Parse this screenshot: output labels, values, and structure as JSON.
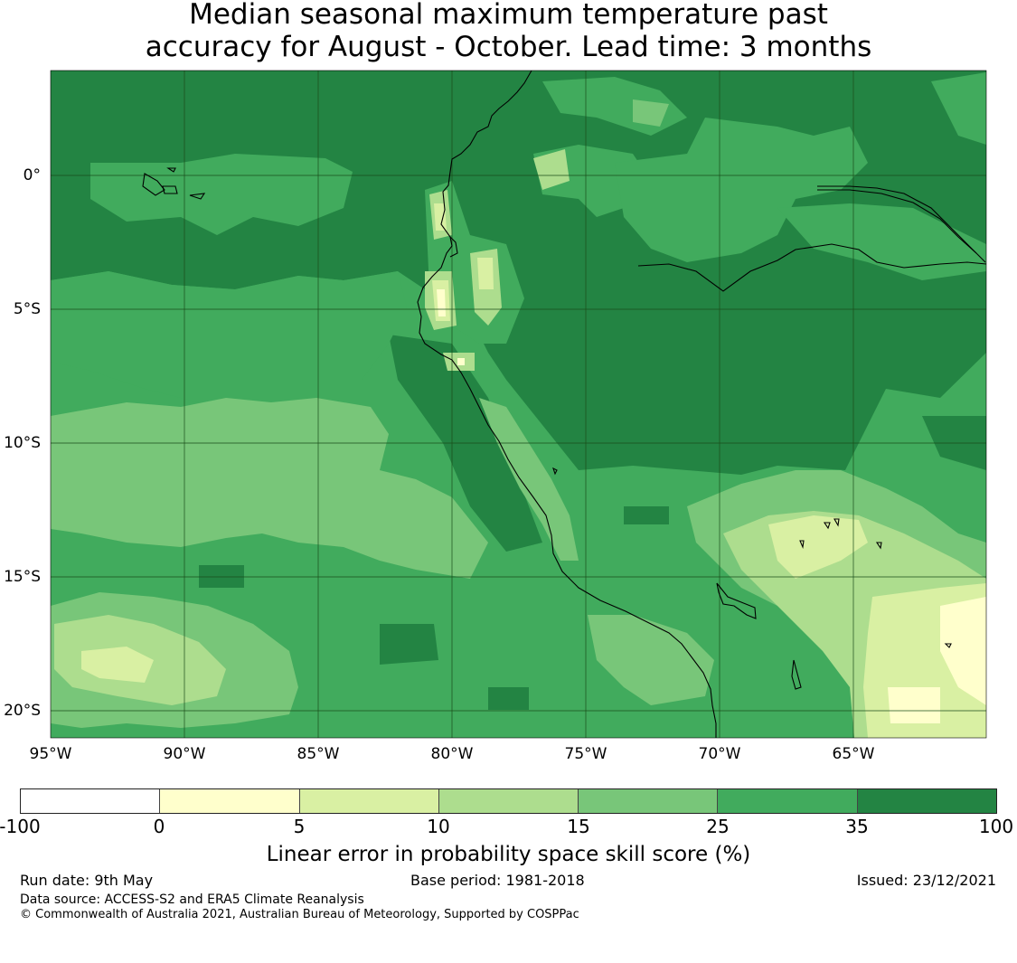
{
  "title": {
    "line1": "Median seasonal maximum temperature past",
    "line2": "accuracy for August - October. Lead time: 3 months"
  },
  "map": {
    "region": "Eastern Pacific / Peru and Ecuador",
    "colors": {
      "c_neg": "#ffffff",
      "c0": "#ffffcc",
      "c5": "#d9f0a3",
      "c10": "#addd8e",
      "c15": "#78c679",
      "c25": "#41ab5d",
      "c35": "#238443",
      "coast": "#000000",
      "grid": "#1a4d1a"
    },
    "lat_labels": [
      "0°",
      "5°S",
      "10°S",
      "15°S",
      "20°S"
    ],
    "lon_labels": [
      "95°W",
      "90°W",
      "85°W",
      "80°W",
      "75°W",
      "70°W",
      "65°W"
    ]
  },
  "colorbar": {
    "boundaries": [
      "-100",
      "0",
      "5",
      "10",
      "15",
      "25",
      "35",
      "100"
    ],
    "colors": [
      "#ffffff",
      "#ffffcc",
      "#d9f0a3",
      "#addd8e",
      "#78c679",
      "#41ab5d",
      "#238443"
    ],
    "label": "Linear error in probability space skill score (%)"
  },
  "footer": {
    "run_date": "Run date: 9th May",
    "base_period": "Base period: 1981-2018",
    "issued": "Issued: 23/12/2021",
    "data_source": "Data source: ACCESS-S2 and ERA5 Climate Reanalysis",
    "copyright": "© Commonwealth of Australia 2021, Australian Bureau of Meteorology, Supported by COSPPac"
  }
}
